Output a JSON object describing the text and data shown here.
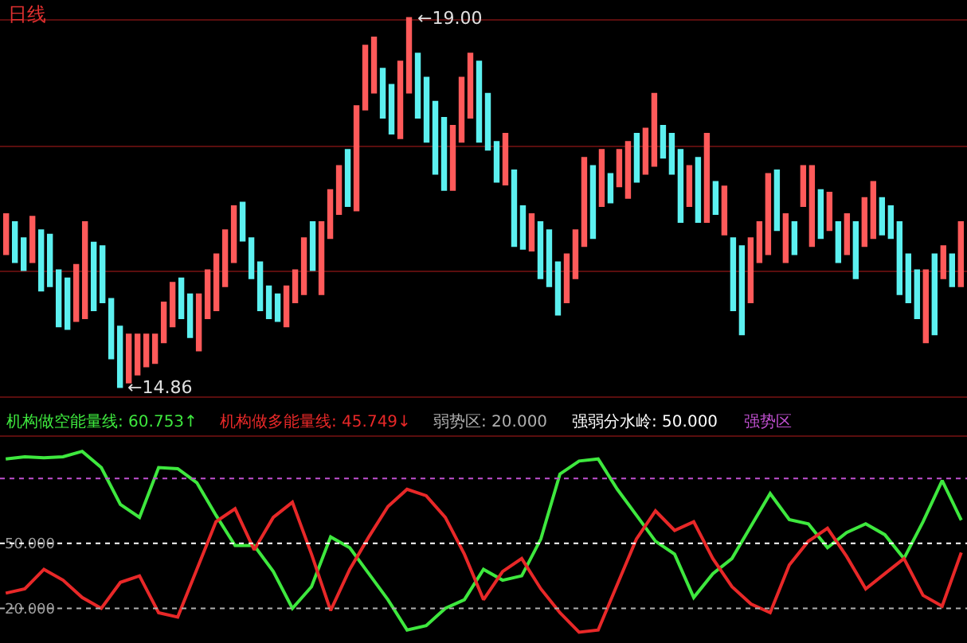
{
  "chart_data": [
    {
      "type": "candlestick",
      "title": "日线",
      "categories": [
        null,
        null,
        null,
        null,
        null,
        null,
        null,
        null,
        null,
        null,
        null,
        null,
        null,
        null,
        null,
        null,
        null,
        null,
        null,
        null,
        null,
        null,
        null,
        null,
        null,
        null,
        null,
        null,
        null,
        null,
        null,
        null,
        null,
        null,
        null,
        null,
        null,
        null,
        null,
        null,
        null,
        null,
        null,
        null,
        null,
        null,
        null,
        null,
        null,
        null,
        null,
        null,
        null,
        null,
        null,
        null,
        null,
        null,
        null,
        null,
        null,
        null,
        null,
        null,
        null,
        null,
        null,
        null,
        null,
        null,
        null,
        null,
        null,
        null,
        null,
        null,
        null,
        null,
        null,
        null,
        null,
        null,
        null,
        null,
        null,
        null,
        null,
        null,
        null,
        null,
        null,
        null,
        null,
        null,
        null,
        null,
        null,
        null,
        null,
        null,
        null,
        null,
        null,
        null,
        null,
        null,
        null,
        null,
        null,
        null
      ],
      "ohlc": [
        [
          16.35,
          16.8,
          16.35,
          16.8
        ],
        [
          16.71,
          16.71,
          16.26,
          16.26
        ],
        [
          16.53,
          16.53,
          16.17,
          16.17
        ],
        [
          16.26,
          16.77,
          16.26,
          16.77
        ],
        [
          16.62,
          16.62,
          15.94,
          15.94
        ],
        [
          16.57,
          16.57,
          15.99,
          15.99
        ],
        [
          16.17,
          16.17,
          15.54,
          15.54
        ],
        [
          16.08,
          16.08,
          15.51,
          15.51
        ],
        [
          15.6,
          16.23,
          15.6,
          16.23
        ],
        [
          15.63,
          16.71,
          15.63,
          16.71
        ],
        [
          16.48,
          16.48,
          15.72,
          15.72
        ],
        [
          16.44,
          16.44,
          15.81,
          15.81
        ],
        [
          15.85,
          15.85,
          15.18,
          15.18
        ],
        [
          15.54,
          15.54,
          14.86,
          14.86
        ],
        [
          14.91,
          15.45,
          14.91,
          15.45
        ],
        [
          15.0,
          15.45,
          15.0,
          15.45
        ],
        [
          15.09,
          15.45,
          15.09,
          15.45
        ],
        [
          15.13,
          15.45,
          15.13,
          15.45
        ],
        [
          15.36,
          15.81,
          15.36,
          15.81
        ],
        [
          15.54,
          16.03,
          15.54,
          16.03
        ],
        [
          16.08,
          16.08,
          15.63,
          15.63
        ],
        [
          15.9,
          15.9,
          15.42,
          15.42
        ],
        [
          15.27,
          15.9,
          15.27,
          15.9
        ],
        [
          15.63,
          16.17,
          15.63,
          16.17
        ],
        [
          15.72,
          16.35,
          15.72,
          16.35
        ],
        [
          15.99,
          16.62,
          15.99,
          16.62
        ],
        [
          16.26,
          16.89,
          16.26,
          16.89
        ],
        [
          16.93,
          16.93,
          16.5,
          16.5
        ],
        [
          16.53,
          16.53,
          16.08,
          16.08
        ],
        [
          16.26,
          16.26,
          15.72,
          15.72
        ],
        [
          15.99,
          15.99,
          15.63,
          15.63
        ],
        [
          15.9,
          15.9,
          15.6,
          15.6
        ],
        [
          15.54,
          15.99,
          15.54,
          15.99
        ],
        [
          15.81,
          16.17,
          15.81,
          16.17
        ],
        [
          15.9,
          16.53,
          15.9,
          16.53
        ],
        [
          16.71,
          16.71,
          16.17,
          16.17
        ],
        [
          15.9,
          16.71,
          15.9,
          16.71
        ],
        [
          16.53,
          17.07,
          16.53,
          17.07
        ],
        [
          16.8,
          17.34,
          16.8,
          17.34
        ],
        [
          17.52,
          17.52,
          16.89,
          16.89
        ],
        [
          16.84,
          18.01,
          16.84,
          18.01
        ],
        [
          17.97,
          18.69,
          17.97,
          18.69
        ],
        [
          18.16,
          18.78,
          18.16,
          18.78
        ],
        [
          18.43,
          18.43,
          17.88,
          17.88
        ],
        [
          18.25,
          18.25,
          17.7,
          17.7
        ],
        [
          17.65,
          18.51,
          17.65,
          18.51
        ],
        [
          18.16,
          19.0,
          18.16,
          19.0
        ],
        [
          18.6,
          18.6,
          17.88,
          17.88
        ],
        [
          18.33,
          18.33,
          17.61,
          17.61
        ],
        [
          18.06,
          18.06,
          17.25,
          17.25
        ],
        [
          17.88,
          17.88,
          17.07,
          17.07
        ],
        [
          17.07,
          17.79,
          17.07,
          17.79
        ],
        [
          17.61,
          18.33,
          17.61,
          18.33
        ],
        [
          17.88,
          18.6,
          17.88,
          18.6
        ],
        [
          18.51,
          18.51,
          17.61,
          17.61
        ],
        [
          18.15,
          18.15,
          17.52,
          17.52
        ],
        [
          17.61,
          17.61,
          17.16,
          17.16
        ],
        [
          17.13,
          17.7,
          17.13,
          17.7
        ],
        [
          17.29,
          17.29,
          16.44,
          16.44
        ],
        [
          16.89,
          16.89,
          16.41,
          16.41
        ],
        [
          16.39,
          16.8,
          16.39,
          16.8
        ],
        [
          16.71,
          16.71,
          16.08,
          16.08
        ],
        [
          16.62,
          16.62,
          15.99,
          15.99
        ],
        [
          16.26,
          16.26,
          15.67,
          15.67
        ],
        [
          15.81,
          16.35,
          15.81,
          16.35
        ],
        [
          16.08,
          16.62,
          16.08,
          16.62
        ],
        [
          16.44,
          17.43,
          16.44,
          17.43
        ],
        [
          17.34,
          17.34,
          16.53,
          16.53
        ],
        [
          16.89,
          17.52,
          16.89,
          17.52
        ],
        [
          17.25,
          17.25,
          16.93,
          16.93
        ],
        [
          17.11,
          17.52,
          17.11,
          17.52
        ],
        [
          16.98,
          17.61,
          16.98,
          17.61
        ],
        [
          17.7,
          17.7,
          17.16,
          17.16
        ],
        [
          17.25,
          17.76,
          17.25,
          17.76
        ],
        [
          17.34,
          18.15,
          17.34,
          18.15
        ],
        [
          17.79,
          17.79,
          17.43,
          17.43
        ],
        [
          17.7,
          17.7,
          17.25,
          17.25
        ],
        [
          17.52,
          17.52,
          16.71,
          16.71
        ],
        [
          16.89,
          17.34,
          16.89,
          17.34
        ],
        [
          17.43,
          17.43,
          16.71,
          16.71
        ],
        [
          16.71,
          17.7,
          16.71,
          17.7
        ],
        [
          17.16,
          17.16,
          16.8,
          16.8
        ],
        [
          16.57,
          17.11,
          16.57,
          17.11
        ],
        [
          16.53,
          16.53,
          15.72,
          15.72
        ],
        [
          16.44,
          16.44,
          15.45,
          15.45
        ],
        [
          15.81,
          16.53,
          15.81,
          16.53
        ],
        [
          16.26,
          16.71,
          16.26,
          16.71
        ],
        [
          16.35,
          17.25,
          16.35,
          17.25
        ],
        [
          17.29,
          17.29,
          16.62,
          16.62
        ],
        [
          16.26,
          16.8,
          16.26,
          16.8
        ],
        [
          16.71,
          16.71,
          16.35,
          16.35
        ],
        [
          16.89,
          17.34,
          16.89,
          17.34
        ],
        [
          16.44,
          17.34,
          16.44,
          17.34
        ],
        [
          17.07,
          17.07,
          16.53,
          16.53
        ],
        [
          16.62,
          17.04,
          16.62,
          17.04
        ],
        [
          16.71,
          16.71,
          16.26,
          16.26
        ],
        [
          16.35,
          16.8,
          16.35,
          16.8
        ],
        [
          16.71,
          16.71,
          16.08,
          16.08
        ],
        [
          16.44,
          16.98,
          16.44,
          16.98
        ],
        [
          16.53,
          17.16,
          16.53,
          17.16
        ],
        [
          16.98,
          16.98,
          16.57,
          16.57
        ],
        [
          16.89,
          16.89,
          16.53,
          16.53
        ],
        [
          16.71,
          16.71,
          15.9,
          15.9
        ],
        [
          16.35,
          16.35,
          15.81,
          15.81
        ],
        [
          16.17,
          16.17,
          15.63,
          15.63
        ],
        [
          15.36,
          16.17,
          15.36,
          16.17
        ],
        [
          16.35,
          16.35,
          15.45,
          15.45
        ],
        [
          16.08,
          16.44,
          16.08,
          16.44
        ],
        [
          16.35,
          16.35,
          15.99,
          15.99
        ],
        [
          15.99,
          16.71,
          15.99,
          16.71
        ]
      ],
      "colors": [
        "#ff5a5a",
        "#5cf0f0",
        "#5cf0f0",
        "#ff5a5a",
        "#5cf0f0",
        "#5cf0f0",
        "#5cf0f0",
        "#5cf0f0",
        "#ff5a5a",
        "#ff5a5a",
        "#5cf0f0",
        "#5cf0f0",
        "#5cf0f0",
        "#5cf0f0",
        "#ff5a5a",
        "#ff5a5a",
        "#ff5a5a",
        "#ff5a5a",
        "#ff5a5a",
        "#ff5a5a",
        "#5cf0f0",
        "#5cf0f0",
        "#ff5a5a",
        "#ff5a5a",
        "#ff5a5a",
        "#ff5a5a",
        "#ff5a5a",
        "#5cf0f0",
        "#5cf0f0",
        "#5cf0f0",
        "#5cf0f0",
        "#5cf0f0",
        "#ff5a5a",
        "#ff5a5a",
        "#ff5a5a",
        "#5cf0f0",
        "#ff5a5a",
        "#ff5a5a",
        "#ff5a5a",
        "#5cf0f0",
        "#ff5a5a",
        "#ff5a5a",
        "#ff5a5a",
        "#5cf0f0",
        "#5cf0f0",
        "#ff5a5a",
        "#ff5a5a",
        "#5cf0f0",
        "#5cf0f0",
        "#5cf0f0",
        "#5cf0f0",
        "#ff5a5a",
        "#ff5a5a",
        "#ff5a5a",
        "#5cf0f0",
        "#5cf0f0",
        "#5cf0f0",
        "#ff5a5a",
        "#5cf0f0",
        "#5cf0f0",
        "#ff5a5a",
        "#5cf0f0",
        "#5cf0f0",
        "#5cf0f0",
        "#ff5a5a",
        "#ff5a5a",
        "#ff5a5a",
        "#5cf0f0",
        "#ff5a5a",
        "#5cf0f0",
        "#ff5a5a",
        "#ff5a5a",
        "#5cf0f0",
        "#ff5a5a",
        "#ff5a5a",
        "#5cf0f0",
        "#5cf0f0",
        "#5cf0f0",
        "#ff5a5a",
        "#5cf0f0",
        "#ff5a5a",
        "#5cf0f0",
        "#ff5a5a",
        "#5cf0f0",
        "#5cf0f0",
        "#ff5a5a",
        "#ff5a5a",
        "#ff5a5a",
        "#5cf0f0",
        "#ff5a5a",
        "#5cf0f0",
        "#ff5a5a",
        "#ff5a5a",
        "#5cf0f0",
        "#ff5a5a",
        "#5cf0f0",
        "#ff5a5a",
        "#5cf0f0",
        "#ff5a5a",
        "#ff5a5a",
        "#5cf0f0",
        "#5cf0f0",
        "#5cf0f0",
        "#5cf0f0",
        "#5cf0f0",
        "#ff5a5a",
        "#5cf0f0",
        "#ff5a5a",
        "#5cf0f0",
        "#ff5a5a"
      ],
      "ylim": [
        14.73,
        19.2
      ],
      "yticks": [
        {
          "value": 18.98,
          "label": null
        },
        {
          "value": 17.56,
          "label": null
        },
        {
          "value": 16.16,
          "label": null
        },
        {
          "value": 14.75,
          "label": null
        }
      ],
      "grid": "y",
      "annotations": [
        "←19.00",
        "←14.86"
      ]
    },
    {
      "type": "line",
      "categories": [
        null,
        null,
        null,
        null,
        null,
        null,
        null,
        null,
        null,
        null,
        null,
        null,
        null,
        null,
        null,
        null,
        null,
        null,
        null,
        null,
        null,
        null,
        null,
        null,
        null,
        null,
        null,
        null,
        null,
        null,
        null,
        null,
        null,
        null,
        null,
        null,
        null,
        null,
        null,
        null,
        null,
        null,
        null,
        null,
        null,
        null,
        null,
        null,
        null,
        null,
        null
      ],
      "series": [
        {
          "name": "机构做空能量线",
          "color": "#3ee83e",
          "values": [
            89,
            90,
            89.5,
            90,
            92.5,
            85,
            68,
            62,
            85,
            84.5,
            78,
            63,
            49,
            49,
            37,
            20,
            30,
            53,
            48,
            36,
            24,
            10,
            12,
            20,
            24,
            38,
            33,
            35,
            52,
            82,
            88,
            89,
            75,
            63,
            51,
            45,
            25,
            36,
            43,
            58,
            73,
            61,
            59,
            48,
            55,
            59,
            54,
            43,
            60,
            79,
            60.753
          ]
        },
        {
          "name": "机构做多能量线",
          "color": "#e82828",
          "values": [
            27,
            29,
            38,
            33,
            25,
            20,
            32,
            35,
            18,
            16,
            38,
            60,
            66,
            47,
            62,
            69,
            45,
            19,
            38,
            53,
            67,
            75,
            72,
            62,
            45,
            24,
            37,
            43,
            29,
            18,
            9,
            10,
            31,
            52,
            65,
            56,
            60,
            43,
            30,
            22,
            18,
            40,
            51,
            57,
            44,
            29,
            36,
            43,
            26,
            21,
            45.749
          ]
        }
      ],
      "ylim": [
        4,
        99
      ],
      "yticks": [
        {
          "value": 20,
          "label": "20.000"
        },
        {
          "value": 50,
          "label": "50.000"
        }
      ],
      "ref_lines": [
        {
          "axis": "y",
          "value": 20,
          "label": "弱势区: 20.000",
          "color": "#b0b0b0",
          "line_style": "dotted"
        },
        {
          "axis": "y",
          "value": 50,
          "label": "强弱分水岭: 50.000",
          "color": "#ffffff",
          "line_style": "dotted"
        },
        {
          "axis": "y",
          "value": 80,
          "label": "强势区",
          "color": "#c050d0",
          "line_style": "dotted"
        }
      ],
      "annotations": [
        ": 60.753↑",
        ": 45.749↓"
      ],
      "tick_labels": "y"
    }
  ]
}
